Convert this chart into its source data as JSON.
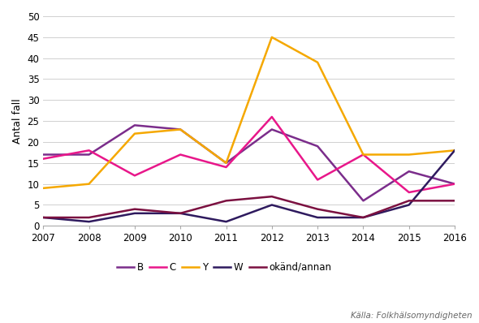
{
  "years": [
    2007,
    2008,
    2009,
    2010,
    2011,
    2012,
    2013,
    2014,
    2015,
    2016
  ],
  "series": {
    "B": [
      17,
      17,
      24,
      23,
      15,
      23,
      19,
      6,
      13,
      10
    ],
    "C": [
      16,
      18,
      12,
      17,
      14,
      26,
      11,
      17,
      8,
      10
    ],
    "Y": [
      9,
      10,
      22,
      23,
      15,
      45,
      39,
      17,
      17,
      18
    ],
    "W": [
      2,
      1,
      3,
      3,
      1,
      5,
      2,
      2,
      5,
      18
    ],
    "okänd/annan": [
      2,
      2,
      4,
      3,
      6,
      7,
      4,
      2,
      6,
      6
    ]
  },
  "colors": {
    "B": "#7b2d8b",
    "C": "#e8178a",
    "Y": "#f5a800",
    "W": "#2e1a5e",
    "okänd/annan": "#7b1040"
  },
  "series_order": [
    "B",
    "C",
    "Y",
    "W",
    "okänd/annan"
  ],
  "ylabel": "Antal fall",
  "ylim": [
    0,
    50
  ],
  "yticks": [
    0,
    5,
    10,
    15,
    20,
    25,
    30,
    35,
    40,
    45,
    50
  ],
  "source_text": "Källa: Folkhälsomyndigheten",
  "background_color": "#ffffff",
  "grid_color": "#d0d0d0"
}
